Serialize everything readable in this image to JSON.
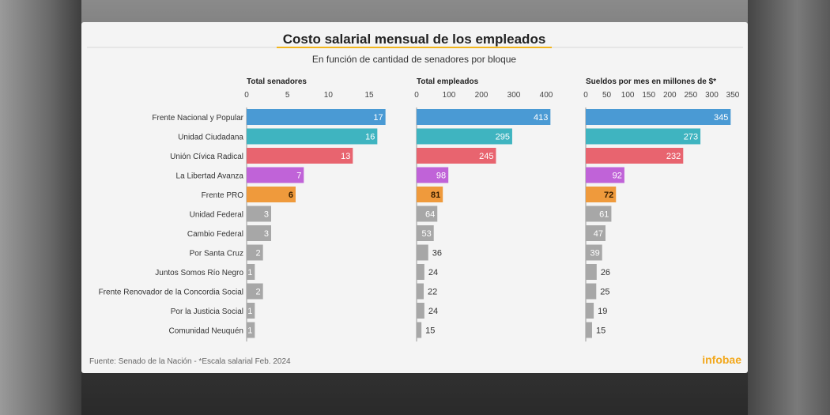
{
  "chart_data": {
    "type": "bar",
    "orientation": "horizontal",
    "title": "Costo salarial mensual de los empleados",
    "subtitle": "En función de cantidad de senadores por bloque",
    "categories": [
      "Frente Nacional y Popular",
      "Unidad Ciudadana",
      "Unión Cívica Radical",
      "La Libertad Avanza",
      "Frente PRO",
      "Unidad Federal",
      "Cambio Federal",
      "Por Santa Cruz",
      "Juntos Somos Río Negro",
      "Frente Renovador de la Concordia Social",
      "Por la Justicia Social",
      "Comunidad Neuquén"
    ],
    "bar_colors": [
      "#4a9ad4",
      "#3fb4c0",
      "#e8646f",
      "#c063d8",
      "#ef9a3c",
      "#a7a7a7",
      "#a7a7a7",
      "#a7a7a7",
      "#a7a7a7",
      "#a7a7a7",
      "#a7a7a7",
      "#a7a7a7"
    ],
    "panels": [
      {
        "title": "Total senadores",
        "xlim": [
          0,
          17
        ],
        "ticks": [
          0,
          5,
          10,
          15
        ],
        "values": [
          17,
          16,
          13,
          7,
          6,
          3,
          3,
          2,
          1,
          2,
          1,
          1
        ]
      },
      {
        "title": "Total empleados",
        "xlim": [
          0,
          413
        ],
        "ticks": [
          0,
          100,
          200,
          300,
          400
        ],
        "values": [
          413,
          295,
          245,
          98,
          81,
          64,
          53,
          36,
          24,
          22,
          24,
          15
        ]
      },
      {
        "title": "Sueldos por mes en millones  de $*",
        "xlim": [
          0,
          350
        ],
        "ticks": [
          0,
          50,
          100,
          150,
          200,
          250,
          300,
          350
        ],
        "values": [
          345,
          273,
          232,
          92,
          72,
          61,
          47,
          39,
          26,
          25,
          19,
          15
        ]
      }
    ],
    "grid": false
  },
  "footer": {
    "source": "Fuente: Senado de la Nación - *Escala salarial Feb. 2024",
    "brand": "infobae"
  },
  "colors": {
    "accent_underline": "#f2b51c",
    "brand": "#f2a81d"
  }
}
